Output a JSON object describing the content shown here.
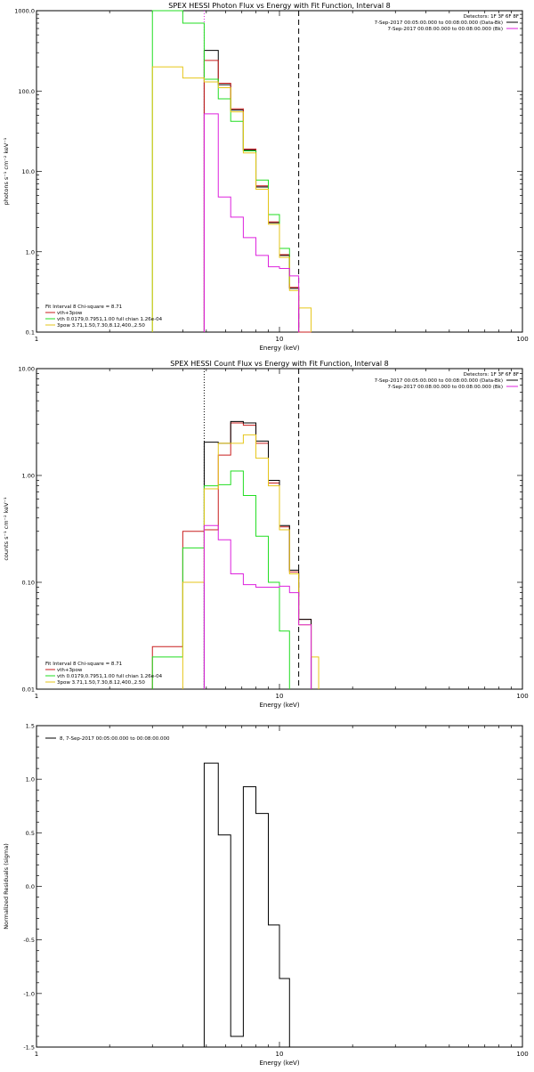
{
  "colors": {
    "black": "#000000",
    "red": "#c81e1e",
    "green": "#22dd22",
    "yellow": "#e6c619",
    "magenta": "#dd22dd"
  },
  "chart_data": [
    {
      "type": "line",
      "drawstyle": "steps",
      "title": "SPEX HESSI Photon Flux vs Energy with Fit Function, Interval 8",
      "xlabel": "Energy (keV)",
      "ylabel": "photons s⁻¹ cm⁻² keV⁻¹",
      "xscale": "log",
      "yscale": "log",
      "xlim": [
        1,
        100
      ],
      "ylim": [
        0.1,
        1000
      ],
      "xticks": [
        {
          "v": 1,
          "l": "1"
        },
        {
          "v": 10,
          "l": "10"
        },
        {
          "v": 100,
          "l": "100"
        }
      ],
      "yticks": [
        {
          "v": 0.1,
          "l": "0.1"
        },
        {
          "v": 1,
          "l": "1.0"
        },
        {
          "v": 10,
          "l": "10.0"
        },
        {
          "v": 100,
          "l": "100.0"
        },
        {
          "v": 1000,
          "l": "1000.0"
        }
      ],
      "vlines": [
        {
          "x": 4.9,
          "style": "dotted",
          "color": "magenta"
        },
        {
          "x": 12.0,
          "style": "dashed",
          "color": "black"
        }
      ],
      "legend_top": [
        {
          "text": "Detectors: 1F 3F 6F 8F"
        },
        {
          "text": "7-Sep-2017 00:05:00.000 to 00:08:00.000 (Data-Bk)",
          "color": "black"
        },
        {
          "text": "7-Sep-2017 00:08:00.000 to 00:08:00.000 (Bk)",
          "color": "magenta"
        }
      ],
      "legend_bottom": [
        {
          "text": "Fit Interval 8   Chi-square = 8.71"
        },
        {
          "text": "vth+3pow",
          "color": "red"
        },
        {
          "text": "vth 0.0179,0.7951,1.00   full chian 1.26e-04",
          "color": "green"
        },
        {
          "text": "3pow 3.71,1.50,7.30,8.12,400.,2.50",
          "color": "yellow"
        }
      ],
      "series": [
        {
          "color": "black",
          "edges": [
            4.9,
            5.6,
            6.3,
            7.1,
            8.0,
            9.0,
            10.0,
            11.0,
            12.0,
            13.5
          ],
          "values": [
            320,
            120,
            58,
            18.5,
            6.4,
            2.3,
            0.9,
            0.35,
            0.1
          ]
        },
        {
          "color": "red",
          "edges": [
            4.9,
            5.6,
            6.3,
            7.1,
            8.0,
            9.0,
            10.0,
            11.0,
            12.0,
            13.5
          ],
          "values": [
            240,
            125,
            60,
            19,
            6.6,
            2.35,
            0.92,
            0.36,
            0.1
          ]
        },
        {
          "color": "green",
          "edges": [
            3.0,
            4.0,
            4.9,
            5.6,
            6.3,
            7.1,
            8.0,
            9.0,
            10.0,
            11.0
          ],
          "values": [
            1000,
            700,
            140,
            80,
            42,
            18,
            7.8,
            2.9,
            1.1,
            0.4
          ]
        },
        {
          "color": "yellow",
          "edges": [
            3.0,
            4.0,
            4.9,
            5.6,
            6.3,
            7.1,
            8.0,
            9.0,
            10.0,
            11.0,
            12.0,
            13.5
          ],
          "values": [
            200,
            145,
            130,
            110,
            55,
            17,
            6,
            2.2,
            0.85,
            0.33,
            0.2
          ]
        },
        {
          "color": "magenta",
          "edges": [
            4.9,
            5.6,
            6.3,
            7.1,
            8.0,
            9.0,
            10.0,
            11.0,
            12.0
          ],
          "values": [
            52,
            4.8,
            2.7,
            1.5,
            0.9,
            0.65,
            0.62,
            0.5
          ]
        }
      ]
    },
    {
      "type": "line",
      "drawstyle": "steps",
      "title": "SPEX HESSI Count Flux vs Energy with Fit Function, Interval 8",
      "xlabel": "Energy (keV)",
      "ylabel": "counts s⁻¹ cm⁻² keV⁻¹",
      "xscale": "log",
      "yscale": "log",
      "xlim": [
        1,
        100
      ],
      "ylim": [
        0.01,
        10
      ],
      "xticks": [
        {
          "v": 1,
          "l": "1"
        },
        {
          "v": 10,
          "l": "10"
        },
        {
          "v": 100,
          "l": "100"
        }
      ],
      "yticks": [
        {
          "v": 0.01,
          "l": "0.01"
        },
        {
          "v": 0.1,
          "l": "0.10"
        },
        {
          "v": 1,
          "l": "1.00"
        },
        {
          "v": 10,
          "l": "10.00"
        }
      ],
      "vlines": [
        {
          "x": 4.9,
          "style": "dotted",
          "color": "black"
        },
        {
          "x": 12.0,
          "style": "dashed",
          "color": "black"
        }
      ],
      "legend_top": [
        {
          "text": "Detectors: 1F 3F 6F 8F"
        },
        {
          "text": "7-Sep-2017 00:05:00.000 to 00:08:00.000 (Data-Bk)",
          "color": "black"
        },
        {
          "text": "7-Sep-2017 00:08:00.000 to 00:08:00.000 (Bk)",
          "color": "magenta"
        }
      ],
      "legend_bottom": [
        {
          "text": "Fit Interval 8   Chi-square = 8.71"
        },
        {
          "text": "vth+3pow",
          "color": "red"
        },
        {
          "text": "vth 0.0179,0.7951,1.00   full chian 1.26e-04",
          "color": "green"
        },
        {
          "text": "3pow 3.71,1.50,7.30,8.12,400.,2.50",
          "color": "yellow"
        }
      ],
      "series": [
        {
          "color": "red",
          "edges": [
            3.0,
            4.0,
            4.9,
            5.6,
            6.3,
            7.1,
            8.0,
            9.0,
            10.0,
            11.0,
            12.0,
            13.5
          ],
          "values": [
            0.025,
            0.3,
            0.31,
            1.55,
            3.1,
            2.95,
            2.0,
            0.85,
            0.33,
            0.125,
            0.045
          ]
        },
        {
          "color": "black",
          "edges": [
            4.9,
            5.6,
            6.3,
            7.1,
            8.0,
            9.0,
            10.0,
            11.0,
            12.0,
            13.5
          ],
          "values": [
            2.05,
            2.0,
            3.2,
            3.1,
            2.1,
            0.9,
            0.34,
            0.13,
            0.045
          ]
        },
        {
          "color": "green",
          "edges": [
            3.0,
            4.0,
            4.9,
            5.6,
            6.3,
            7.1,
            8.0,
            9.0,
            10.0,
            11.0
          ],
          "values": [
            0.02,
            0.21,
            0.8,
            0.82,
            1.1,
            0.65,
            0.27,
            0.1,
            0.035
          ]
        },
        {
          "color": "yellow",
          "edges": [
            4.0,
            4.9,
            5.6,
            6.3,
            7.1,
            8.0,
            9.0,
            10.0,
            11.0,
            12.0,
            13.5,
            14.5
          ],
          "values": [
            0.1,
            0.75,
            2.0,
            2.0,
            2.4,
            1.45,
            0.8,
            0.31,
            0.12,
            0.04,
            0.02
          ]
        },
        {
          "color": "magenta",
          "edges": [
            4.9,
            5.6,
            6.3,
            7.1,
            8.0,
            9.0,
            10.0,
            11.0,
            12.0,
            13.5
          ],
          "values": [
            0.34,
            0.25,
            0.12,
            0.095,
            0.09,
            0.09,
            0.092,
            0.08,
            0.04
          ]
        }
      ]
    },
    {
      "type": "line",
      "drawstyle": "steps",
      "title": "",
      "xlabel": "Energy (keV)",
      "ylabel": "Normalized Residuals (sigma)",
      "xscale": "log",
      "yscale": "linear",
      "xlim": [
        1,
        100
      ],
      "ylim": [
        -1.5,
        1.5
      ],
      "xticks": [
        {
          "v": 1,
          "l": "1"
        },
        {
          "v": 10,
          "l": "10"
        },
        {
          "v": 100,
          "l": "100"
        }
      ],
      "yticks": [
        {
          "v": -1.5,
          "l": "-1.5"
        },
        {
          "v": -1.0,
          "l": "-1.0"
        },
        {
          "v": -0.5,
          "l": "-0.5"
        },
        {
          "v": 0,
          "l": "0.0"
        },
        {
          "v": 0.5,
          "l": "0.5"
        },
        {
          "v": 1.0,
          "l": "1.0"
        },
        {
          "v": 1.5,
          "l": "1.5"
        }
      ],
      "legend_inline": {
        "text": "8,  7-Sep-2017 00:05:00.000 to 00:08:00.000",
        "color": "black"
      },
      "series": [
        {
          "color": "black",
          "closed": true,
          "edges": [
            4.9,
            5.6,
            6.3,
            7.1,
            8.0,
            9.0,
            10.0,
            11.0,
            12.0
          ],
          "values": [
            1.15,
            0.48,
            -1.4,
            0.93,
            0.68,
            -0.36,
            -0.86,
            -1.5
          ]
        }
      ]
    }
  ]
}
